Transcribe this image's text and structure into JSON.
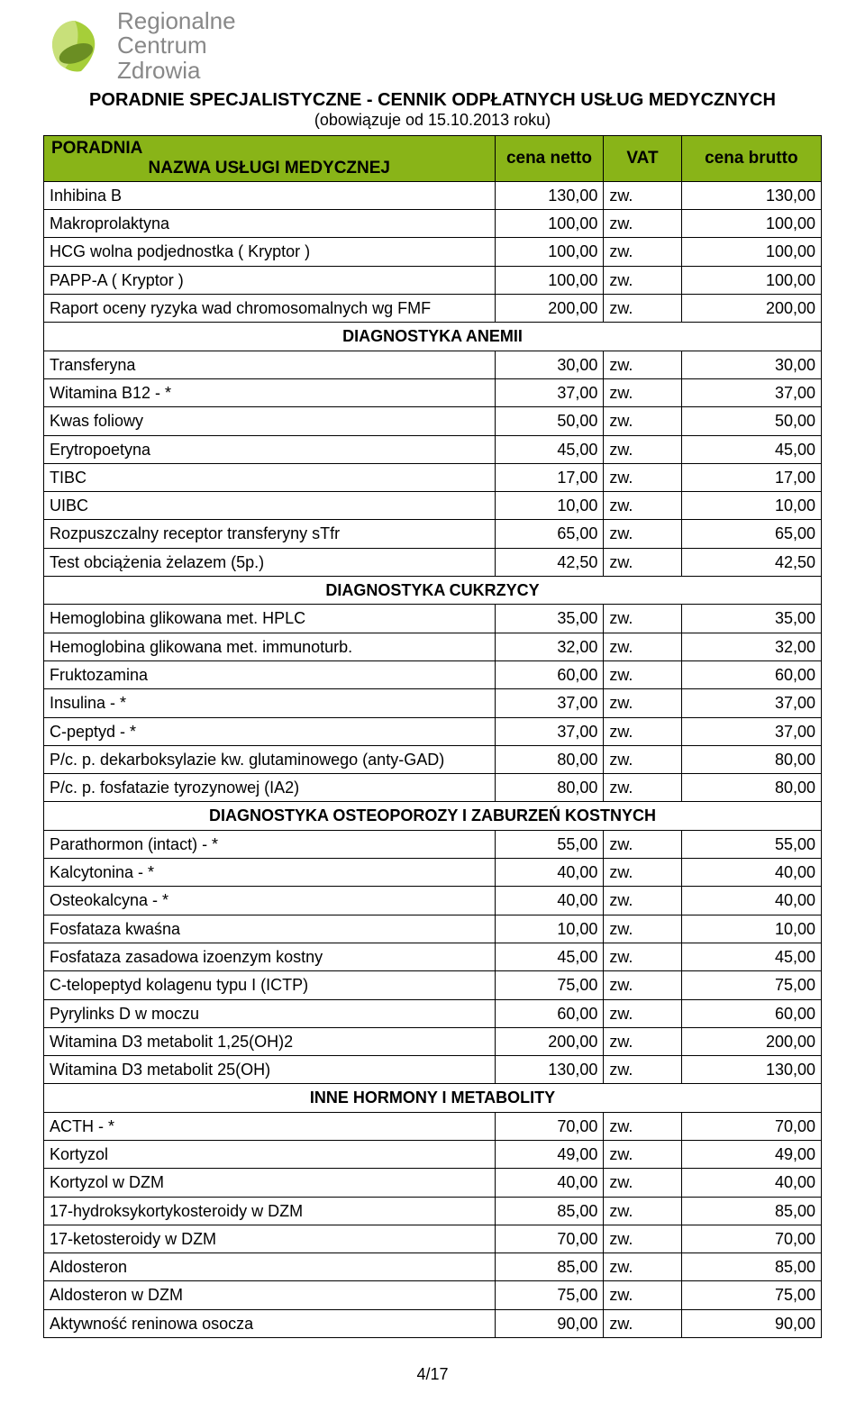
{
  "logo": {
    "line1": "Regionalne",
    "line2": "Centrum",
    "line3": "Zdrowia",
    "leaf_color": "#a6ce39",
    "leaf_dark": "#6b8e23",
    "text_color": "#888888"
  },
  "title": {
    "main": "PORADNIE SPECJALISTYCZNE - CENNIK ODPŁATNYCH  USŁUG MEDYCZNYCH",
    "sub": "(obowiązuje od 15.10.2013 roku)"
  },
  "header": {
    "poradnia": "PORADNIA",
    "nazwa": "NAZWA USŁUGI MEDYCZNEJ",
    "netto": "cena netto",
    "vat": "VAT",
    "brutto": "cena brutto",
    "bg": "#89b418"
  },
  "rows": [
    {
      "type": "item",
      "name": "Inhibina B",
      "netto": "130,00",
      "vat": "zw.",
      "brutto": "130,00"
    },
    {
      "type": "item",
      "name": "Makroprolaktyna",
      "netto": "100,00",
      "vat": "zw.",
      "brutto": "100,00"
    },
    {
      "type": "item",
      "name": " HCG wolna podjednostka  ( Kryptor )",
      "netto": "100,00",
      "vat": "zw.",
      "brutto": "100,00"
    },
    {
      "type": "item",
      "name": "PAPP-A  ( Kryptor )",
      "netto": "100,00",
      "vat": "zw.",
      "brutto": "100,00"
    },
    {
      "type": "item",
      "name": "Raport oceny ryzyka wad chromosomalnych wg FMF",
      "netto": "200,00",
      "vat": "zw.",
      "brutto": "200,00"
    },
    {
      "type": "section",
      "name": "DIAGNOSTYKA ANEMII"
    },
    {
      "type": "item",
      "name": "Transferyna",
      "netto": "30,00",
      "vat": "zw.",
      "brutto": "30,00"
    },
    {
      "type": "item",
      "name": "Witamina B12 - *",
      "netto": "37,00",
      "vat": "zw.",
      "brutto": "37,00"
    },
    {
      "type": "item",
      "name": "Kwas foliowy",
      "netto": "50,00",
      "vat": "zw.",
      "brutto": "50,00"
    },
    {
      "type": "item",
      "name": "Erytropoetyna",
      "netto": "45,00",
      "vat": "zw.",
      "brutto": "45,00"
    },
    {
      "type": "item",
      "name": "TIBC",
      "netto": "17,00",
      "vat": "zw.",
      "brutto": "17,00"
    },
    {
      "type": "item",
      "name": "UIBC",
      "netto": "10,00",
      "vat": "zw.",
      "brutto": "10,00"
    },
    {
      "type": "item",
      "name": "Rozpuszczalny receptor transferyny sTfr",
      "netto": "65,00",
      "vat": "zw.",
      "brutto": "65,00"
    },
    {
      "type": "item",
      "name": "Test obciążenia żelazem (5p.)",
      "netto": "42,50",
      "vat": "zw.",
      "brutto": "42,50"
    },
    {
      "type": "section",
      "name": "DIAGNOSTYKA CUKRZYCY"
    },
    {
      "type": "item",
      "name": "Hemoglobina glikowana met. HPLC",
      "netto": "35,00",
      "vat": "zw.",
      "brutto": "35,00"
    },
    {
      "type": "item",
      "name": "Hemoglobina glikowana met. immunoturb.",
      "netto": "32,00",
      "vat": "zw.",
      "brutto": "32,00"
    },
    {
      "type": "item",
      "name": "Fruktozamina",
      "netto": "60,00",
      "vat": "zw.",
      "brutto": "60,00"
    },
    {
      "type": "item",
      "name": "Insulina - *",
      "netto": "37,00",
      "vat": "zw.",
      "brutto": "37,00"
    },
    {
      "type": "item",
      "name": "C-peptyd - *",
      "netto": "37,00",
      "vat": "zw.",
      "brutto": "37,00"
    },
    {
      "type": "item",
      "name": "P/c. p. dekarboksylazie kw. glutaminowego (anty-GAD)",
      "netto": "80,00",
      "vat": "zw.",
      "brutto": "80,00"
    },
    {
      "type": "item",
      "name": "P/c. p. fosfatazie tyrozynowej (IA2)",
      "netto": "80,00",
      "vat": "zw.",
      "brutto": "80,00"
    },
    {
      "type": "section",
      "name": "DIAGNOSTYKA OSTEOPOROZY I ZABURZEŃ KOSTNYCH"
    },
    {
      "type": "item",
      "name": "Parathormon (intact) - *",
      "netto": "55,00",
      "vat": "zw.",
      "brutto": "55,00"
    },
    {
      "type": "item",
      "name": "Kalcytonina - *",
      "netto": "40,00",
      "vat": "zw.",
      "brutto": "40,00"
    },
    {
      "type": "item",
      "name": "Osteokalcyna - *",
      "netto": "40,00",
      "vat": "zw.",
      "brutto": "40,00"
    },
    {
      "type": "item",
      "name": "Fosfataza kwaśna",
      "netto": "10,00",
      "vat": "zw.",
      "brutto": "10,00"
    },
    {
      "type": "item",
      "name": "Fosfataza zasadowa izoenzym kostny",
      "netto": "45,00",
      "vat": "zw.",
      "brutto": "45,00"
    },
    {
      "type": "item",
      "name": "C-telopeptyd kolagenu typu I (ICTP)",
      "netto": "75,00",
      "vat": "zw.",
      "brutto": "75,00"
    },
    {
      "type": "item",
      "name": "Pyrylinks D w moczu",
      "netto": "60,00",
      "vat": "zw.",
      "brutto": "60,00"
    },
    {
      "type": "item",
      "name": "Witamina D3 metabolit 1,25(OH)2",
      "netto": "200,00",
      "vat": "zw.",
      "brutto": "200,00"
    },
    {
      "type": "item",
      "name": "Witamina D3 metabolit 25(OH)",
      "netto": "130,00",
      "vat": "zw.",
      "brutto": "130,00"
    },
    {
      "type": "section",
      "name": "INNE HORMONY I METABOLITY"
    },
    {
      "type": "item",
      "name": "ACTH - *",
      "netto": "70,00",
      "vat": "zw.",
      "brutto": "70,00"
    },
    {
      "type": "item",
      "name": "Kortyzol",
      "netto": "49,00",
      "vat": "zw.",
      "brutto": "49,00"
    },
    {
      "type": "item",
      "name": "Kortyzol w DZM",
      "netto": "40,00",
      "vat": "zw.",
      "brutto": "40,00"
    },
    {
      "type": "item",
      "name": "17-hydroksykortykosteroidy w DZM",
      "netto": "85,00",
      "vat": "zw.",
      "brutto": "85,00"
    },
    {
      "type": "item",
      "name": "17-ketosteroidy w DZM",
      "netto": "70,00",
      "vat": "zw.",
      "brutto": "70,00"
    },
    {
      "type": "item",
      "name": "Aldosteron",
      "netto": "85,00",
      "vat": "zw.",
      "brutto": "85,00"
    },
    {
      "type": "item",
      "name": "Aldosteron w DZM",
      "netto": "75,00",
      "vat": "zw.",
      "brutto": "75,00"
    },
    {
      "type": "item",
      "name": "Aktywność reninowa osocza",
      "netto": "90,00",
      "vat": "zw.",
      "brutto": "90,00"
    }
  ],
  "footer": "4/17"
}
